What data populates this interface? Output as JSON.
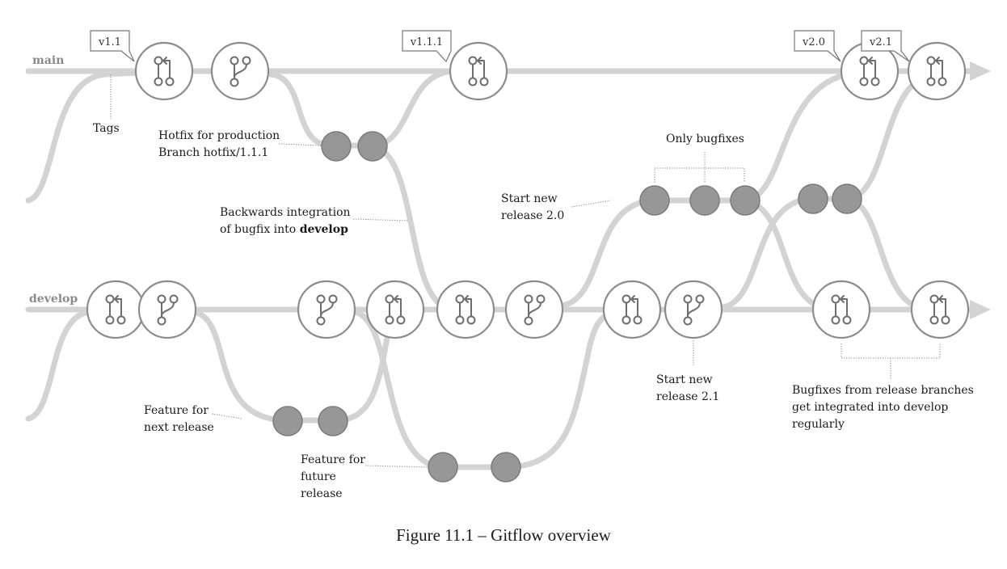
{
  "branches": {
    "main": "main",
    "develop": "develop"
  },
  "tags": {
    "v1_1": "v1.1",
    "v1_1_1": "v1.1.1",
    "v2_0": "v2.0",
    "v2_1": "v2.1"
  },
  "notes": {
    "tags": "Tags",
    "hotfix_line1": "Hotfix for production",
    "hotfix_line2": "Branch hotfix/1.1.1",
    "backwards_line1": "Backwards integration",
    "backwards_line2_prefix": "of bugfix into ",
    "backwards_line2_bold": "develop",
    "only_bugfixes": "Only bugfixes",
    "start_release_20_line1": "Start new",
    "start_release_20_line2": "release 2.0",
    "feature_next_line1": "Feature for",
    "feature_next_line2": "next release",
    "feature_future_line1": "Feature for",
    "feature_future_line2": "future",
    "feature_future_line3": "release",
    "start_release_21_line1": "Start new",
    "start_release_21_line2": "release 2.1",
    "bugfix_line1": "Bugfixes from release branches",
    "bugfix_line2": "get integrated into develop",
    "bugfix_line3": "regularly"
  },
  "caption": "Figure 11.1 – Gitflow overview",
  "colors": {
    "rail": "#d3d3d3",
    "node_stroke": "#8c8c8c",
    "commit_fill": "#979797",
    "background": "#ffffff"
  }
}
